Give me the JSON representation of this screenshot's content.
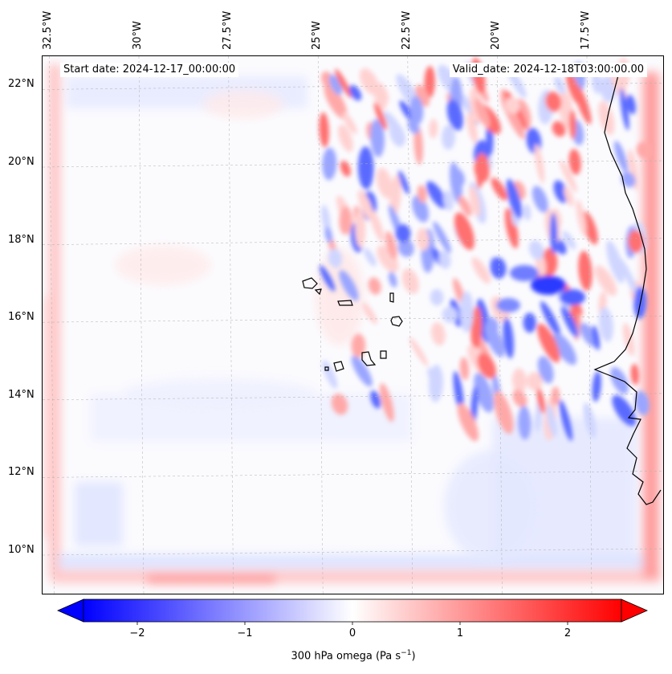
{
  "start_date": "Start date: 2024-12-17_00:00:00",
  "valid_date": "Valid_date: 2024-12-18T03:00:00.00",
  "lon_ticks": [
    {
      "label": "32.5°W",
      "lon": -32.5
    },
    {
      "label": "30°W",
      "lon": -30.0
    },
    {
      "label": "27.5°W",
      "lon": -27.5
    },
    {
      "label": "25°W",
      "lon": -25.0
    },
    {
      "label": "22.5°W",
      "lon": -22.5
    },
    {
      "label": "20°W",
      "lon": -20.0
    },
    {
      "label": "17.5°W",
      "lon": -17.5
    }
  ],
  "lat_ticks": [
    {
      "label": "22°N",
      "lat": 22
    },
    {
      "label": "20°N",
      "lat": 20
    },
    {
      "label": "18°N",
      "lat": 18
    },
    {
      "label": "16°N",
      "lat": 16
    },
    {
      "label": "14°N",
      "lat": 14
    },
    {
      "label": "12°N",
      "lat": 12
    },
    {
      "label": "10°N",
      "lat": 10
    }
  ],
  "colorbar": {
    "label": "300 hPa omega (Pa s",
    "label_sup": "−1",
    "label_close": ")",
    "min": -2.5,
    "max": 2.5,
    "ticks": [
      {
        "label": "−2",
        "value": -2
      },
      {
        "label": "−1",
        "value": -1
      },
      {
        "label": "0",
        "value": 0
      },
      {
        "label": "1",
        "value": 1
      },
      {
        "label": "2",
        "value": 2
      }
    ],
    "color_neg": "#0000ff",
    "color_mid": "#ffffff",
    "color_pos": "#ff0000"
  },
  "colors": {
    "coast": "#000000",
    "grid": "#b0b0b0"
  }
}
